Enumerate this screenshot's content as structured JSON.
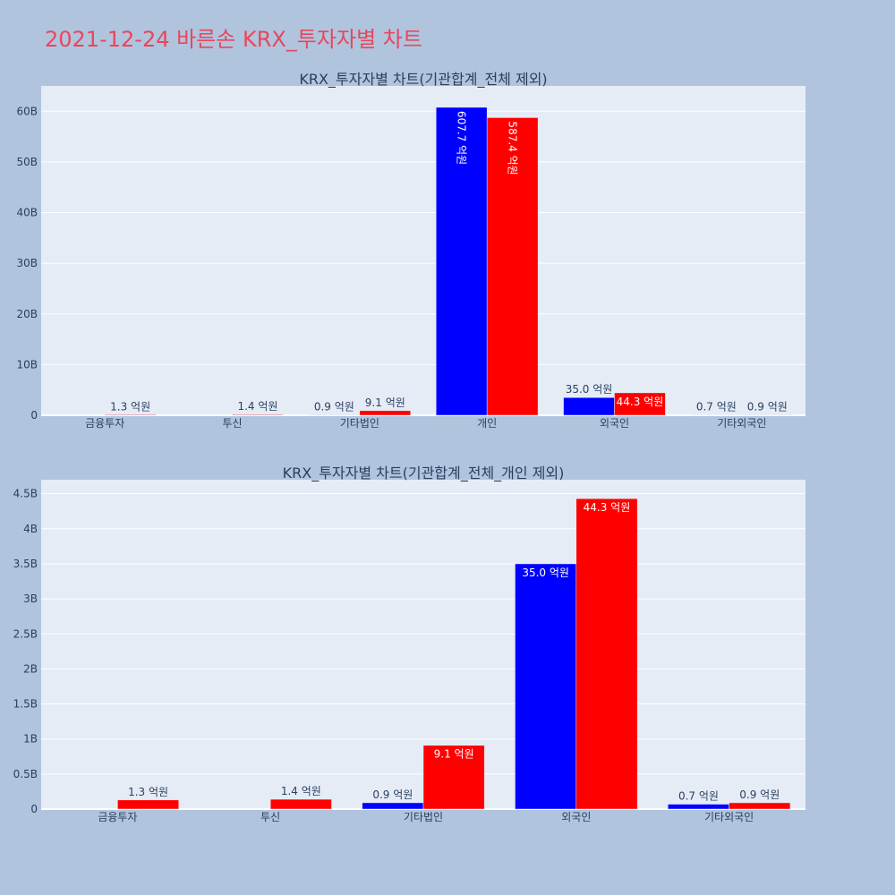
{
  "page_title": "2021-12-24 바른손 KRX_투자자별 차트",
  "colors": {
    "buy": "#0000ff",
    "sell": "#ff0000",
    "title": "#e8475b",
    "background": "#b0c4de",
    "plot_bg": "#e5ecf6"
  },
  "chart_data": [
    {
      "type": "bar",
      "title": "KRX_투자자별 차트(기관합계_전체 제외)",
      "categories": [
        "금융투자",
        "투신",
        "기타법인",
        "개인",
        "외국인",
        "기타외국인"
      ],
      "series": [
        {
          "color": "#0000ff",
          "values": [
            0,
            0,
            0.09,
            60.77,
            3.5,
            0.07
          ],
          "labels": [
            "",
            "",
            "0.9 억원",
            "607.7 억원",
            "35.0 억원",
            "0.7 억원"
          ]
        },
        {
          "color": "#ff0000",
          "values": [
            0.13,
            0.14,
            0.91,
            58.74,
            4.43,
            0.09
          ],
          "labels": [
            "1.3 억원",
            "1.4 억원",
            "9.1 억원",
            "587.4 억원",
            "44.3 억원",
            "0.9 억원"
          ]
        }
      ],
      "ylim": [
        0,
        65
      ],
      "yticks": [
        0,
        10,
        20,
        30,
        40,
        50,
        60
      ],
      "ytick_labels": [
        "0",
        "10B",
        "20B",
        "30B",
        "40B",
        "50B",
        "60B"
      ],
      "grid": true
    },
    {
      "type": "bar",
      "title": "KRX_투자자별 차트(기관합계_전체_개인 제외)",
      "categories": [
        "금융투자",
        "투신",
        "기타법인",
        "외국인",
        "기타외국인"
      ],
      "series": [
        {
          "color": "#0000ff",
          "values": [
            0,
            0,
            0.09,
            3.5,
            0.07
          ],
          "labels": [
            "",
            "",
            "0.9 억원",
            "35.0 억원",
            "0.7 억원"
          ]
        },
        {
          "color": "#ff0000",
          "values": [
            0.13,
            0.14,
            0.91,
            4.43,
            0.09
          ],
          "labels": [
            "1.3 억원",
            "1.4 억원",
            "9.1 억원",
            "44.3 억원",
            "0.9 억원"
          ]
        }
      ],
      "ylim": [
        0,
        4.7
      ],
      "yticks": [
        0,
        0.5,
        1,
        1.5,
        2,
        2.5,
        3,
        3.5,
        4,
        4.5
      ],
      "ytick_labels": [
        "0",
        "0.5B",
        "1B",
        "1.5B",
        "2B",
        "2.5B",
        "3B",
        "3.5B",
        "4B",
        "4.5B"
      ],
      "grid": true
    }
  ]
}
